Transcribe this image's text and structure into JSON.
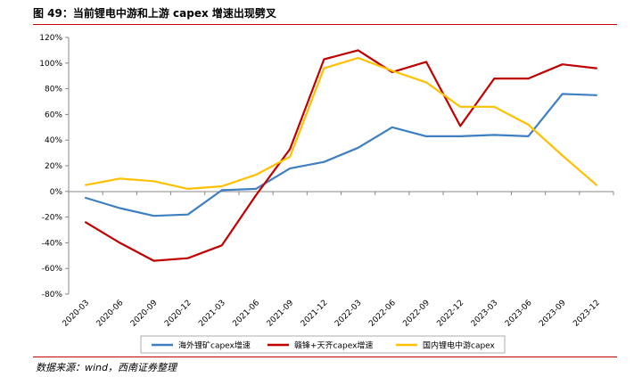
{
  "header": {
    "title": "图 49：当前锂电中游和上游 capex 增速出现劈叉"
  },
  "footer": {
    "source": "数据来源：wind，西南证券整理"
  },
  "chart_data": {
    "type": "line",
    "title": "",
    "xlabel": "",
    "ylabel": "",
    "categories": [
      "2020-03",
      "2020-06",
      "2020-09",
      "2020-12",
      "2021-03",
      "2021-06",
      "2021-09",
      "2021-12",
      "2022-03",
      "2022-06",
      "2022-09",
      "2022-12",
      "2023-03",
      "2023-06",
      "2023-09",
      "2023-12"
    ],
    "y_ticks": [
      "120%",
      "100%",
      "80%",
      "60%",
      "40%",
      "20%",
      "0%",
      "-20%",
      "-40%",
      "-60%",
      "-80%"
    ],
    "ylim": [
      -80,
      120
    ],
    "legend_position": "bottom",
    "grid": false,
    "series": [
      {
        "name": "海外锂矿capex增速",
        "color": "#3d7fc1",
        "values": [
          -5,
          -13,
          -19,
          -18,
          1,
          2,
          18,
          23,
          34,
          50,
          43,
          43,
          44,
          43,
          76,
          75
        ]
      },
      {
        "name": "赣锋+天齐capex增速",
        "color": "#c00000",
        "values": [
          -24,
          -40,
          -54,
          -52,
          -42,
          -3,
          33,
          103,
          110,
          93,
          101,
          51,
          88,
          88,
          99,
          96
        ]
      },
      {
        "name": "国内锂电中游capex",
        "color": "#ffc000",
        "values": [
          5,
          10,
          8,
          2,
          4,
          13,
          27,
          96,
          104,
          94,
          85,
          66,
          66,
          52,
          28,
          5
        ]
      }
    ]
  }
}
